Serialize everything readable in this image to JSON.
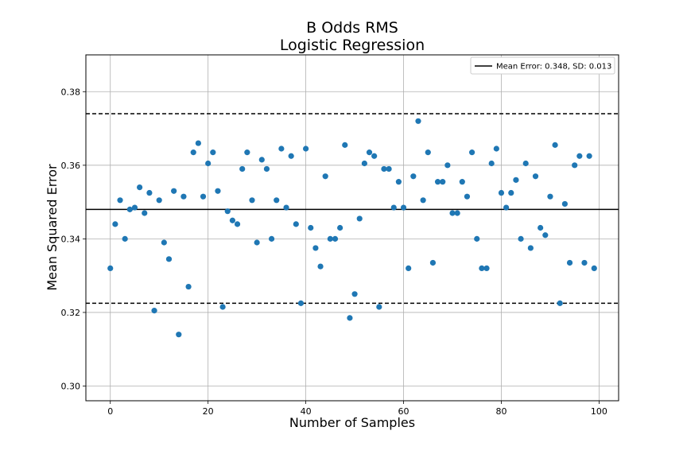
{
  "chart_data": {
    "type": "scatter",
    "title": "B Odds RMS",
    "subtitle": "Logistic Regression",
    "xlabel": "Number of Samples",
    "ylabel": "Mean Squared Error",
    "xlim": [
      -5,
      104
    ],
    "ylim": [
      0.296,
      0.39
    ],
    "xticks": [
      0,
      20,
      40,
      60,
      80,
      100
    ],
    "yticks": [
      0.3,
      0.32,
      0.34,
      0.36,
      0.38
    ],
    "xtick_labels": [
      "0",
      "20",
      "40",
      "60",
      "80",
      "100"
    ],
    "ytick_labels": [
      "0.30",
      "0.32",
      "0.34",
      "0.36",
      "0.38"
    ],
    "grid": true,
    "legend_position": "top-right",
    "point_color": "#1f77b4",
    "mean_line": {
      "label": "Mean Error: 0.348, SD: 0.013",
      "value": 0.348,
      "color": "#000000"
    },
    "band_lines": [
      0.374,
      0.3225
    ],
    "series": [
      {
        "x": [
          0,
          1,
          2,
          3,
          4,
          5,
          6,
          7,
          8,
          9,
          10,
          11,
          12,
          13,
          14,
          15,
          16,
          17,
          18,
          19,
          20,
          21,
          22,
          23,
          24,
          25,
          26,
          27,
          28,
          29,
          30,
          31,
          32,
          33,
          34,
          35,
          36,
          37,
          38,
          39,
          40,
          41,
          42,
          43,
          44,
          45,
          46,
          47,
          48,
          49,
          50,
          51,
          52,
          53,
          54,
          55,
          56,
          57,
          58,
          59,
          60,
          61,
          62,
          63,
          64,
          65,
          66,
          67,
          68,
          69,
          70,
          71,
          72,
          73,
          74,
          75,
          76,
          77,
          78,
          79,
          80,
          81,
          82,
          83,
          84,
          85,
          86,
          87,
          88,
          89,
          90,
          91,
          92,
          93,
          94,
          95,
          96,
          97,
          98,
          99
        ],
        "y": [
          0.332,
          0.344,
          0.3505,
          0.34,
          0.348,
          0.3485,
          0.354,
          0.347,
          0.3525,
          0.3205,
          0.3505,
          0.339,
          0.3345,
          0.353,
          0.314,
          0.3515,
          0.327,
          0.3635,
          0.366,
          0.3515,
          0.3605,
          0.3635,
          0.353,
          0.3215,
          0.3475,
          0.345,
          0.344,
          0.359,
          0.3635,
          0.3505,
          0.339,
          0.3615,
          0.359,
          0.34,
          0.3505,
          0.3645,
          0.3485,
          0.3625,
          0.344,
          0.3225,
          0.3645,
          0.343,
          0.3375,
          0.3325,
          0.357,
          0.34,
          0.34,
          0.343,
          0.3655,
          0.3185,
          0.325,
          0.3455,
          0.3605,
          0.3635,
          0.3625,
          0.3215,
          0.359,
          0.359,
          0.3485,
          0.3555,
          0.3485,
          0.332,
          0.357,
          0.372,
          0.3505,
          0.3635,
          0.3335,
          0.3555,
          0.3555,
          0.36,
          0.347,
          0.347,
          0.3555,
          0.3515,
          0.3635,
          0.34,
          0.332,
          0.332,
          0.3605,
          0.3645,
          0.3525,
          0.3485,
          0.3525,
          0.356,
          0.34,
          0.3605,
          0.3375,
          0.357,
          0.343,
          0.341,
          0.3515,
          0.3655,
          0.3225,
          0.3495,
          0.3335,
          0.36,
          0.3625,
          0.3335,
          0.3625,
          0.332
        ]
      }
    ]
  }
}
